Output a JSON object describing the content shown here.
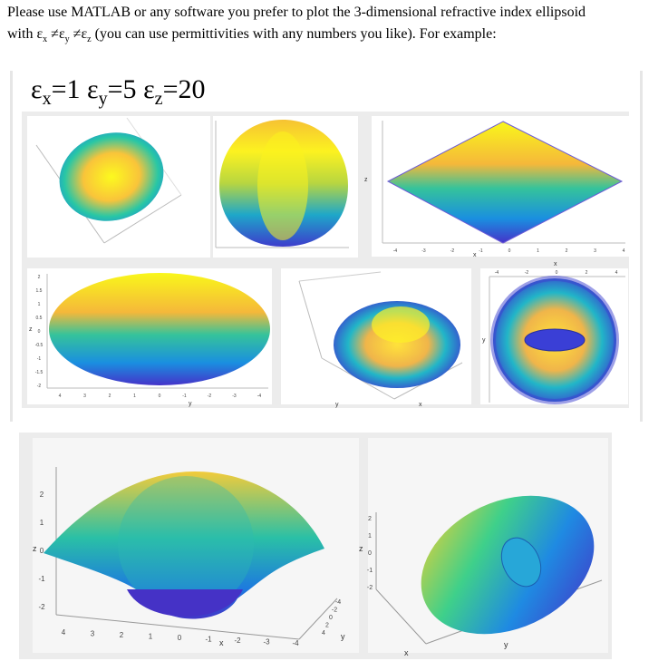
{
  "question": {
    "line1": "Please use MATLAB or any software you prefer to plot the 3-dimensional refractive index ellipsoid",
    "line2_start": "with ε",
    "sub_x": "x",
    "neq1": " ≠ε",
    "sub_y": "y",
    "neq2": " ≠ε",
    "sub_z": "z",
    "line2_end": " (you can use permittivities with any numbers you like). For example:"
  },
  "figure_title": {
    "eps_x": "ε",
    "sub_x": "x",
    "eq_x": "=1 ",
    "eps_y": "ε",
    "sub_y": "y",
    "eq_y": "=5 ",
    "eps_z": "ε",
    "sub_z": "z",
    "eq_z": "=20"
  },
  "plots": {
    "p4_ticks_z": [
      "2",
      "1.5",
      "1",
      "0.5",
      "0",
      "-0.5",
      "-1",
      "-1.5",
      "-2"
    ],
    "p4_ticks_y": [
      "4",
      "3",
      "2",
      "1",
      "0",
      "-1",
      "-2",
      "-3",
      "-4"
    ],
    "p4_axis_z": "z",
    "p4_axis_y": "y",
    "p3_ticks_x": [
      "-4",
      "-3",
      "-2",
      "-1",
      "0",
      "1",
      "2",
      "3",
      "4"
    ],
    "p3_axis_x": "x",
    "p3_axis_z": "z",
    "p6_ticks_x": [
      "-4",
      "-2",
      "0",
      "2",
      "4"
    ],
    "p6_axis_x": "x",
    "p6_axis_y": "y",
    "p7_ticks_z": [
      "2",
      "1",
      "0",
      "-1",
      "-2"
    ],
    "p7_ticks_x": [
      "4",
      "3",
      "2",
      "1",
      "0",
      "-1",
      "-2",
      "-3",
      "-4"
    ],
    "p7_ticks_y": [
      "-4",
      "-2",
      "0",
      "2",
      "4"
    ],
    "p7_axis_z": "z",
    "p7_axis_x": "x",
    "p7_axis_y": "y",
    "p8_ticks_z": [
      "2",
      "1",
      "0",
      "-1",
      "-2"
    ],
    "p8_axis_z": "z",
    "p8_axis_x": "x",
    "p8_axis_y": "y"
  }
}
